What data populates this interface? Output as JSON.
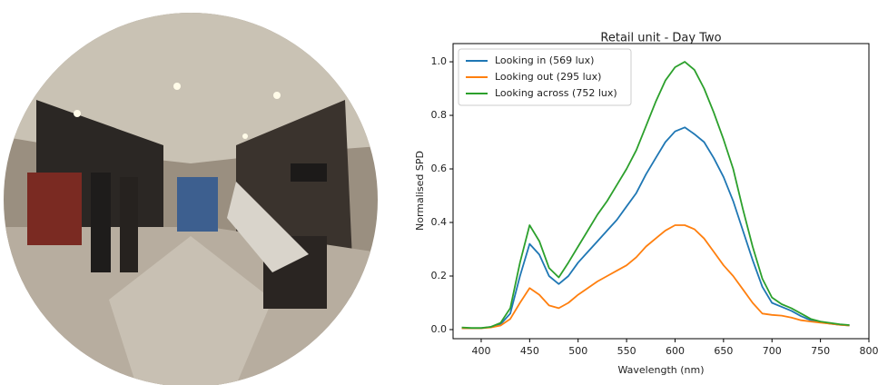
{
  "chart_data": {
    "type": "line",
    "title": "Retail unit - Day Two",
    "x_label": "Wavelength (nm)",
    "y_label": "Normalised SPD",
    "x": [
      380,
      390,
      400,
      410,
      420,
      430,
      440,
      450,
      460,
      470,
      480,
      490,
      500,
      510,
      520,
      530,
      540,
      550,
      560,
      570,
      580,
      590,
      600,
      610,
      620,
      630,
      640,
      650,
      660,
      670,
      680,
      690,
      700,
      710,
      720,
      730,
      740,
      750,
      760,
      770,
      780
    ],
    "series": [
      {
        "name": "Looking in (569 lux)",
        "color": "#1f77b4",
        "values": [
          0.005,
          0.005,
          0.005,
          0.01,
          0.02,
          0.06,
          0.2,
          0.32,
          0.28,
          0.2,
          0.17,
          0.2,
          0.25,
          0.29,
          0.33,
          0.37,
          0.41,
          0.46,
          0.51,
          0.58,
          0.64,
          0.7,
          0.74,
          0.755,
          0.73,
          0.7,
          0.64,
          0.57,
          0.48,
          0.37,
          0.26,
          0.16,
          0.1,
          0.085,
          0.07,
          0.05,
          0.035,
          0.028,
          0.022,
          0.018,
          0.015
        ]
      },
      {
        "name": "Looking out (295 lux)",
        "color": "#ff7f0e",
        "values": [
          0.005,
          0.005,
          0.005,
          0.008,
          0.015,
          0.04,
          0.1,
          0.155,
          0.13,
          0.09,
          0.08,
          0.1,
          0.13,
          0.155,
          0.18,
          0.2,
          0.22,
          0.24,
          0.27,
          0.31,
          0.34,
          0.37,
          0.39,
          0.39,
          0.375,
          0.34,
          0.29,
          0.24,
          0.2,
          0.15,
          0.1,
          0.06,
          0.055,
          0.052,
          0.045,
          0.035,
          0.03,
          0.026,
          0.022,
          0.018,
          0.015
        ]
      },
      {
        "name": "Looking across (752 lux)",
        "color": "#2ca02c",
        "values": [
          0.008,
          0.006,
          0.006,
          0.01,
          0.025,
          0.08,
          0.25,
          0.39,
          0.33,
          0.23,
          0.195,
          0.25,
          0.31,
          0.37,
          0.43,
          0.48,
          0.54,
          0.6,
          0.67,
          0.76,
          0.85,
          0.93,
          0.98,
          1.0,
          0.97,
          0.9,
          0.81,
          0.71,
          0.6,
          0.45,
          0.31,
          0.19,
          0.12,
          0.095,
          0.08,
          0.06,
          0.04,
          0.03,
          0.025,
          0.02,
          0.017
        ]
      }
    ],
    "xlim": [
      371,
      800
    ],
    "ylim": [
      -0.034,
      1.068
    ],
    "xticks": [
      400,
      450,
      500,
      550,
      600,
      650,
      700,
      750,
      800
    ],
    "yticks": [
      {
        "value": 0,
        "label": "0.0"
      },
      0.2,
      0.4,
      0.6,
      0.8,
      {
        "value": 1,
        "label": "1.0"
      }
    ],
    "legend": "upper left"
  }
}
